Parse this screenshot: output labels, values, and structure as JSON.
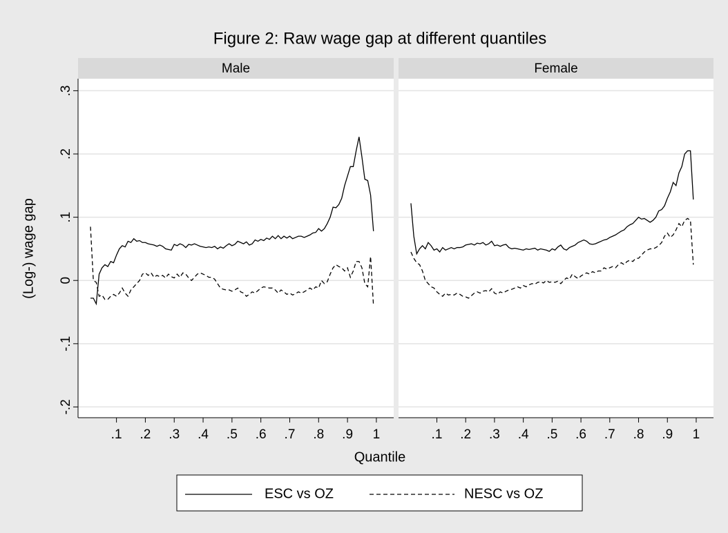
{
  "chart_data": {
    "type": "line",
    "title": "Figure 2: Raw wage gap at different quantiles",
    "y_label": "(Log-) wage gap",
    "x_label": "Quantile",
    "xlim": [
      -0.033,
      1.06
    ],
    "ylim": [
      -0.217,
      0.319
    ],
    "xticks": [
      {
        "value": 0.1,
        "label": ".1"
      },
      {
        "value": 0.2,
        "label": ".2"
      },
      {
        "value": 0.3,
        "label": ".3"
      },
      {
        "value": 0.4,
        "label": ".4"
      },
      {
        "value": 0.5,
        "label": ".5"
      },
      {
        "value": 0.6,
        "label": ".6"
      },
      {
        "value": 0.7,
        "label": ".7"
      },
      {
        "value": 0.8,
        "label": ".8"
      },
      {
        "value": 0.9,
        "label": ".9"
      },
      1
    ],
    "yticks": [
      {
        "value": -0.2,
        "label": "-.2"
      },
      {
        "value": -0.1,
        "label": "-.1"
      },
      0,
      {
        "value": 0.1,
        "label": ".1"
      },
      {
        "value": 0.2,
        "label": ".2"
      },
      {
        "value": 0.3,
        "label": ".3"
      }
    ],
    "grid": true,
    "x": [
      0.01,
      0.02,
      0.03,
      0.04,
      0.05,
      0.06,
      0.07,
      0.08,
      0.09,
      0.1,
      0.11,
      0.12,
      0.13,
      0.14,
      0.15,
      0.16,
      0.17,
      0.18,
      0.19,
      0.2,
      0.21,
      0.22,
      0.23,
      0.24,
      0.25,
      0.26,
      0.27,
      0.28,
      0.29,
      0.3,
      0.31,
      0.32,
      0.33,
      0.34,
      0.35,
      0.36,
      0.37,
      0.38,
      0.39,
      0.4,
      0.41,
      0.42,
      0.43,
      0.44,
      0.45,
      0.46,
      0.47,
      0.48,
      0.49,
      0.5,
      0.51,
      0.52,
      0.53,
      0.54,
      0.55,
      0.56,
      0.57,
      0.58,
      0.59,
      0.6,
      0.61,
      0.62,
      0.63,
      0.64,
      0.65,
      0.66,
      0.67,
      0.68,
      0.69,
      0.7,
      0.71,
      0.72,
      0.73,
      0.74,
      0.75,
      0.76,
      0.77,
      0.78,
      0.79,
      0.8,
      0.81,
      0.82,
      0.83,
      0.84,
      0.85,
      0.86,
      0.87,
      0.88,
      0.89,
      0.9,
      0.91,
      0.92,
      0.93,
      0.94,
      0.95,
      0.96,
      0.97,
      0.98,
      0.99
    ],
    "panels": [
      {
        "title": "Male",
        "series": [
          {
            "name": "ESC vs OZ",
            "color": "#000000",
            "dash": "solid",
            "values": [
              -0.028,
              -0.028,
              -0.037,
              0.01,
              0.02,
              0.025,
              0.022,
              0.03,
              0.028,
              0.04,
              0.05,
              0.055,
              0.053,
              0.062,
              0.06,
              0.066,
              0.062,
              0.063,
              0.06,
              0.06,
              0.058,
              0.057,
              0.056,
              0.054,
              0.056,
              0.054,
              0.05,
              0.049,
              0.048,
              0.057,
              0.055,
              0.058,
              0.056,
              0.052,
              0.057,
              0.056,
              0.058,
              0.056,
              0.054,
              0.053,
              0.052,
              0.053,
              0.052,
              0.054,
              0.05,
              0.053,
              0.051,
              0.055,
              0.058,
              0.055,
              0.057,
              0.062,
              0.06,
              0.058,
              0.061,
              0.056,
              0.058,
              0.064,
              0.062,
              0.065,
              0.063,
              0.067,
              0.065,
              0.07,
              0.066,
              0.071,
              0.066,
              0.07,
              0.067,
              0.07,
              0.066,
              0.068,
              0.07,
              0.07,
              0.068,
              0.07,
              0.072,
              0.075,
              0.076,
              0.082,
              0.078,
              0.082,
              0.09,
              0.1,
              0.116,
              0.115,
              0.12,
              0.13,
              0.15,
              0.165,
              0.18,
              0.18,
              0.205,
              0.227,
              0.195,
              0.16,
              0.158,
              0.135,
              0.078
            ]
          },
          {
            "name": "NESC vs OZ",
            "color": "#000000",
            "dash": "dashed",
            "values": [
              0.085,
              0.0,
              -0.003,
              -0.025,
              -0.023,
              -0.03,
              -0.03,
              -0.025,
              -0.022,
              -0.025,
              -0.02,
              -0.012,
              -0.02,
              -0.025,
              -0.015,
              -0.01,
              -0.005,
              0.0,
              0.01,
              0.012,
              0.008,
              0.012,
              0.005,
              0.008,
              0.006,
              0.008,
              0.004,
              0.01,
              0.006,
              0.004,
              0.01,
              0.005,
              0.012,
              0.01,
              0.004,
              0.0,
              0.005,
              0.01,
              0.012,
              0.01,
              0.008,
              0.005,
              0.005,
              0.002,
              -0.005,
              -0.012,
              -0.014,
              -0.015,
              -0.015,
              -0.017,
              -0.015,
              -0.012,
              -0.018,
              -0.02,
              -0.025,
              -0.022,
              -0.018,
              -0.02,
              -0.016,
              -0.012,
              -0.01,
              -0.011,
              -0.012,
              -0.012,
              -0.015,
              -0.02,
              -0.015,
              -0.018,
              -0.022,
              -0.02,
              -0.023,
              -0.021,
              -0.018,
              -0.02,
              -0.018,
              -0.015,
              -0.012,
              -0.015,
              -0.01,
              -0.012,
              0.0,
              -0.005,
              -0.002,
              0.01,
              0.02,
              0.025,
              0.022,
              0.02,
              0.015,
              0.02,
              0.005,
              0.015,
              0.03,
              0.03,
              0.02,
              -0.005,
              -0.01,
              0.038,
              -0.04
            ]
          }
        ]
      },
      {
        "title": "Female",
        "series": [
          {
            "name": "ESC vs OZ",
            "color": "#000000",
            "dash": "solid",
            "values": [
              0.122,
              0.07,
              0.042,
              0.05,
              0.055,
              0.05,
              0.06,
              0.055,
              0.048,
              0.05,
              0.045,
              0.052,
              0.048,
              0.05,
              0.052,
              0.05,
              0.052,
              0.052,
              0.053,
              0.056,
              0.057,
              0.058,
              0.056,
              0.059,
              0.058,
              0.06,
              0.056,
              0.058,
              0.062,
              0.055,
              0.056,
              0.054,
              0.056,
              0.057,
              0.052,
              0.05,
              0.051,
              0.05,
              0.049,
              0.048,
              0.05,
              0.049,
              0.05,
              0.051,
              0.048,
              0.05,
              0.049,
              0.048,
              0.046,
              0.05,
              0.048,
              0.053,
              0.056,
              0.05,
              0.048,
              0.052,
              0.054,
              0.056,
              0.06,
              0.062,
              0.064,
              0.062,
              0.058,
              0.057,
              0.058,
              0.06,
              0.062,
              0.064,
              0.065,
              0.068,
              0.07,
              0.072,
              0.075,
              0.078,
              0.08,
              0.085,
              0.088,
              0.09,
              0.095,
              0.1,
              0.097,
              0.098,
              0.095,
              0.092,
              0.095,
              0.1,
              0.11,
              0.112,
              0.118,
              0.13,
              0.14,
              0.155,
              0.15,
              0.17,
              0.18,
              0.2,
              0.205,
              0.205,
              0.128
            ]
          },
          {
            "name": "NESC vs OZ",
            "color": "#000000",
            "dash": "dashed",
            "values": [
              0.045,
              0.035,
              0.028,
              0.025,
              0.015,
              0.0,
              -0.005,
              -0.01,
              -0.012,
              -0.018,
              -0.022,
              -0.025,
              -0.02,
              -0.023,
              -0.022,
              -0.023,
              -0.02,
              -0.022,
              -0.025,
              -0.026,
              -0.028,
              -0.024,
              -0.02,
              -0.018,
              -0.02,
              -0.017,
              -0.016,
              -0.018,
              -0.013,
              -0.02,
              -0.022,
              -0.018,
              -0.02,
              -0.017,
              -0.015,
              -0.014,
              -0.012,
              -0.01,
              -0.012,
              -0.008,
              -0.01,
              -0.007,
              -0.005,
              -0.006,
              -0.003,
              -0.002,
              -0.004,
              0.0,
              -0.003,
              -0.002,
              -0.003,
              -0.001,
              -0.005,
              0.0,
              0.004,
              0.002,
              0.01,
              0.006,
              0.003,
              0.007,
              0.01,
              0.012,
              0.01,
              0.014,
              0.012,
              0.015,
              0.015,
              0.02,
              0.018,
              0.02,
              0.022,
              0.02,
              0.025,
              0.028,
              0.025,
              0.03,
              0.032,
              0.03,
              0.035,
              0.035,
              0.04,
              0.045,
              0.048,
              0.05,
              0.05,
              0.052,
              0.055,
              0.06,
              0.07,
              0.075,
              0.068,
              0.072,
              0.08,
              0.09,
              0.085,
              0.095,
              0.098,
              0.095,
              0.025
            ]
          }
        ]
      }
    ]
  }
}
